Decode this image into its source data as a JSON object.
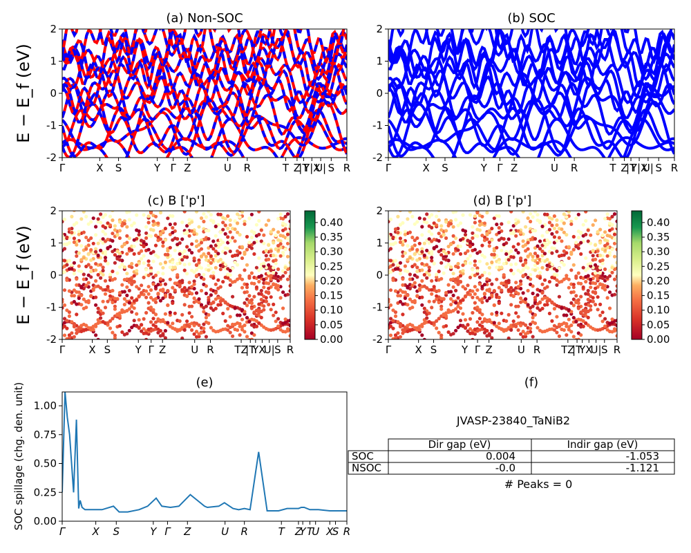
{
  "chart_data": [
    {
      "type": "line",
      "panel": "a",
      "title": "(a) Non-SOC",
      "ylabel": "E − E_f (eV)",
      "ylim": [
        -2,
        2
      ],
      "yticks": [
        -2,
        -1,
        0,
        1,
        2
      ],
      "kpoints": [
        "Γ",
        "X",
        "S",
        "Y",
        "Γ",
        "Z",
        "U",
        "R",
        "T",
        "Z",
        "|T",
        "Y|X",
        "U|",
        "S",
        "R"
      ],
      "series_colors": [
        "#ff0000",
        "#0000ff"
      ]
    },
    {
      "type": "line",
      "panel": "b",
      "title": "(b) SOC",
      "ylim": [
        -2,
        2
      ],
      "yticks": [
        -2,
        -1,
        0,
        1,
        2
      ],
      "kpoints": [
        "Γ",
        "X",
        "S",
        "Y",
        "Γ",
        "Z",
        "U",
        "R",
        "T",
        "Z",
        "|T",
        "Y|X",
        "U|",
        "S",
        "R"
      ],
      "series_colors": [
        "#0000ff"
      ]
    },
    {
      "type": "scatter",
      "panel": "c",
      "title": "(c)  B ['p']",
      "ylabel": "E − E_f (eV)",
      "ylim": [
        -2,
        2
      ],
      "yticks": [
        -2,
        -1,
        0,
        1,
        2
      ],
      "kpoints": [
        "Γ",
        "X",
        "S",
        "Y",
        "Γ",
        "Z",
        "U",
        "R",
        "TZ",
        "|T",
        "Y",
        "X",
        "U|",
        "S",
        "R"
      ],
      "colorbar": {
        "min": 0.0,
        "max": 0.44,
        "ticks": [
          "0.00",
          "0.05",
          "0.10",
          "0.15",
          "0.20",
          "0.25",
          "0.30",
          "0.35",
          "0.40"
        ],
        "cmap": "RdYlGn"
      }
    },
    {
      "type": "scatter",
      "panel": "d",
      "title": "(d) B ['p']",
      "ylim": [
        -2,
        2
      ],
      "yticks": [
        -2,
        -1,
        0,
        1,
        2
      ],
      "kpoints": [
        "Γ",
        "X",
        "S",
        "Y",
        "Γ",
        "Z",
        "U",
        "R",
        "TZ",
        "|T",
        "Y",
        "X",
        "U|",
        "S",
        "R"
      ],
      "colorbar": {
        "min": 0.0,
        "max": 0.44,
        "ticks": [
          "0.00",
          "0.05",
          "0.10",
          "0.15",
          "0.20",
          "0.25",
          "0.30",
          "0.35",
          "0.40"
        ],
        "cmap": "RdYlGn"
      }
    },
    {
      "type": "line",
      "panel": "e",
      "title": "(e)",
      "ylabel": "SOC spillage (chg. den. unit)",
      "ylim": [
        0,
        1.12
      ],
      "yticks": [
        "0.00",
        "0.25",
        "0.50",
        "0.75",
        "1.00"
      ],
      "kpoints": [
        "Γ",
        "X",
        "S",
        "Y",
        "Γ",
        "Z",
        "U",
        "R",
        "T",
        "Z",
        "Y",
        "T",
        "U",
        "X",
        "S",
        "R"
      ],
      "series": [
        {
          "x": [
            0,
            0.01,
            0.018,
            0.026,
            0.04,
            0.05,
            0.058,
            0.063,
            0.07,
            0.08,
            0.1,
            0.14,
            0.18,
            0.2,
            0.23,
            0.27,
            0.3,
            0.33,
            0.35,
            0.38,
            0.41,
            0.45,
            0.48,
            0.5,
            0.51,
            0.55,
            0.57,
            0.6,
            0.62,
            0.64,
            0.66,
            0.69,
            0.72,
            0.76,
            0.79,
            0.81,
            0.83,
            0.84,
            0.85,
            0.87,
            0.9,
            0.94,
            0.97,
            1.0
          ],
          "y": [
            0.25,
            1.12,
            0.9,
            0.75,
            0.25,
            0.88,
            0.11,
            0.18,
            0.12,
            0.1,
            0.1,
            0.1,
            0.13,
            0.08,
            0.08,
            0.1,
            0.13,
            0.2,
            0.13,
            0.12,
            0.13,
            0.23,
            0.17,
            0.13,
            0.12,
            0.13,
            0.16,
            0.11,
            0.1,
            0.11,
            0.1,
            0.6,
            0.09,
            0.09,
            0.11,
            0.11,
            0.11,
            0.12,
            0.12,
            0.1,
            0.1,
            0.09,
            0.09,
            0.09
          ],
          "color": "#1f77b4"
        }
      ]
    },
    {
      "type": "table",
      "panel": "f",
      "title": "(f)",
      "subtitle": "JVASP-23840_TaNiB2",
      "columns": [
        "Dir gap (eV)",
        "Indir gap (eV)"
      ],
      "rows": [
        {
          "label": "SOC",
          "values": [
            "0.004",
            "-1.053"
          ]
        },
        {
          "label": "NSOC",
          "values": [
            "-0.0",
            "-1.121"
          ]
        }
      ],
      "footer": "# Peaks = 0"
    }
  ]
}
